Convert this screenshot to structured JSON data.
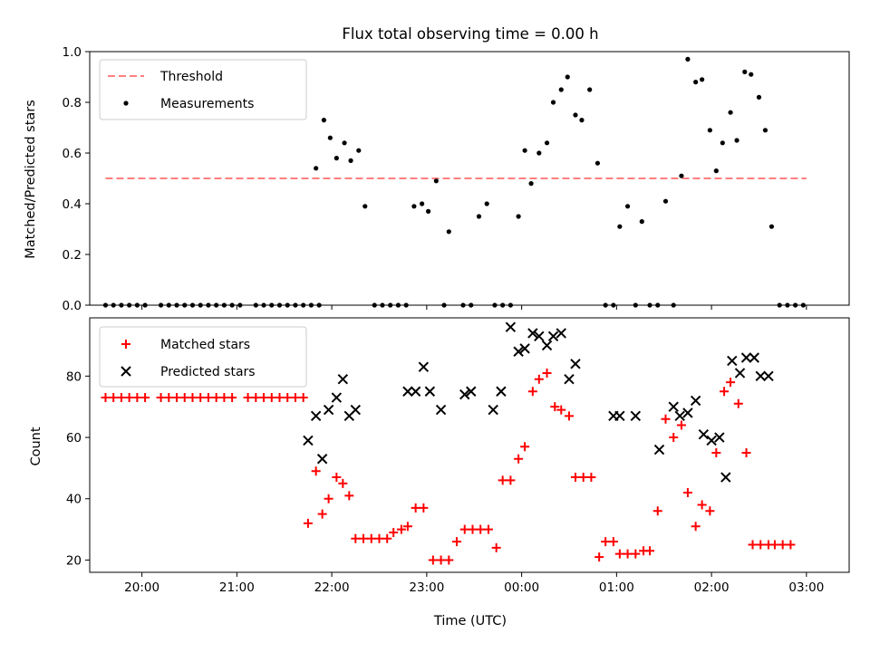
{
  "chart_data": [
    {
      "type": "scatter",
      "title": "Flux total observing time = 0.00 h",
      "xlabel": "",
      "ylabel": "Matched/Predicted stars",
      "xlim": [
        "19:27",
        "03:27"
      ],
      "ylim": [
        0,
        1.0
      ],
      "yticks": [
        "0.0",
        "0.2",
        "0.4",
        "0.6",
        "0.8",
        "1.0"
      ],
      "legend_position": "top-left",
      "threshold": {
        "name": "Threshold",
        "value": 0.5,
        "x_start": "19:37",
        "x_end": "03:00",
        "color": "#ff7f7f",
        "style": "dashed"
      },
      "series": [
        {
          "name": "Measurements",
          "color": "#000000",
          "marker": "dot",
          "points": [
            [
              "19:37",
              0.0
            ],
            [
              "19:42",
              0.0
            ],
            [
              "19:47",
              0.0
            ],
            [
              "19:52",
              0.0
            ],
            [
              "19:57",
              0.0
            ],
            [
              "20:02",
              0.0
            ],
            [
              "20:12",
              0.0
            ],
            [
              "20:17",
              0.0
            ],
            [
              "20:22",
              0.0
            ],
            [
              "20:27",
              0.0
            ],
            [
              "20:32",
              0.0
            ],
            [
              "20:37",
              0.0
            ],
            [
              "20:42",
              0.0
            ],
            [
              "20:47",
              0.0
            ],
            [
              "20:52",
              0.0
            ],
            [
              "20:57",
              0.0
            ],
            [
              "21:02",
              0.0
            ],
            [
              "21:12",
              0.0
            ],
            [
              "21:17",
              0.0
            ],
            [
              "21:22",
              0.0
            ],
            [
              "21:27",
              0.0
            ],
            [
              "21:32",
              0.0
            ],
            [
              "21:37",
              0.0
            ],
            [
              "21:42",
              0.0
            ],
            [
              "21:47",
              0.0
            ],
            [
              "21:52",
              0.0
            ],
            [
              "21:50",
              0.54
            ],
            [
              "21:55",
              0.73
            ],
            [
              "21:59",
              0.66
            ],
            [
              "22:03",
              0.58
            ],
            [
              "22:08",
              0.64
            ],
            [
              "22:12",
              0.57
            ],
            [
              "22:17",
              0.61
            ],
            [
              "22:21",
              0.39
            ],
            [
              "22:27",
              0.0
            ],
            [
              "22:32",
              0.0
            ],
            [
              "22:37",
              0.0
            ],
            [
              "22:42",
              0.0
            ],
            [
              "22:47",
              0.0
            ],
            [
              "22:52",
              0.39
            ],
            [
              "22:57",
              0.4
            ],
            [
              "23:01",
              0.37
            ],
            [
              "23:06",
              0.49
            ],
            [
              "23:11",
              0.0
            ],
            [
              "23:14",
              0.29
            ],
            [
              "23:23",
              0.0
            ],
            [
              "23:28",
              0.0
            ],
            [
              "23:33",
              0.35
            ],
            [
              "23:38",
              0.4
            ],
            [
              "23:43",
              0.0
            ],
            [
              "23:48",
              0.0
            ],
            [
              "23:53",
              0.0
            ],
            [
              "23:58",
              0.35
            ],
            [
              "00:02",
              0.61
            ],
            [
              "00:06",
              0.48
            ],
            [
              "00:11",
              0.6
            ],
            [
              "00:16",
              0.64
            ],
            [
              "00:20",
              0.8
            ],
            [
              "00:25",
              0.85
            ],
            [
              "00:29",
              0.9
            ],
            [
              "00:34",
              0.75
            ],
            [
              "00:38",
              0.73
            ],
            [
              "00:43",
              0.85
            ],
            [
              "00:48",
              0.56
            ],
            [
              "00:53",
              0.0
            ],
            [
              "00:58",
              0.0
            ],
            [
              "01:02",
              0.31
            ],
            [
              "01:07",
              0.39
            ],
            [
              "01:12",
              0.0
            ],
            [
              "01:16",
              0.33
            ],
            [
              "01:21",
              0.0
            ],
            [
              "01:26",
              0.0
            ],
            [
              "01:31",
              0.41
            ],
            [
              "01:36",
              0.0
            ],
            [
              "01:41",
              0.51
            ],
            [
              "01:45",
              0.97
            ],
            [
              "01:50",
              0.88
            ],
            [
              "01:54",
              0.89
            ],
            [
              "01:59",
              0.69
            ],
            [
              "02:03",
              0.53
            ],
            [
              "02:07",
              0.64
            ],
            [
              "02:12",
              0.76
            ],
            [
              "02:16",
              0.65
            ],
            [
              "02:21",
              0.92
            ],
            [
              "02:25",
              0.91
            ],
            [
              "02:30",
              0.82
            ],
            [
              "02:34",
              0.69
            ],
            [
              "02:38",
              0.31
            ],
            [
              "02:43",
              0.0
            ],
            [
              "02:48",
              0.0
            ],
            [
              "02:53",
              0.0
            ],
            [
              "02:58",
              0.0
            ]
          ]
        }
      ]
    },
    {
      "type": "scatter",
      "title": "",
      "xlabel": "Time (UTC)",
      "ylabel": "Count",
      "xlim": [
        "19:27",
        "03:27"
      ],
      "ylim": [
        16,
        99
      ],
      "yticks": [
        "20",
        "40",
        "60",
        "80"
      ],
      "xticks": [
        "20:00",
        "21:00",
        "22:00",
        "23:00",
        "00:00",
        "01:00",
        "02:00",
        "03:00"
      ],
      "legend_position": "top-left",
      "series": [
        {
          "name": "Matched stars",
          "color": "#ff0000",
          "marker": "plus",
          "points": [
            [
              "19:37",
              73
            ],
            [
              "19:42",
              73
            ],
            [
              "19:47",
              73
            ],
            [
              "19:52",
              73
            ],
            [
              "19:57",
              73
            ],
            [
              "20:02",
              73
            ],
            [
              "20:12",
              73
            ],
            [
              "20:17",
              73
            ],
            [
              "20:22",
              73
            ],
            [
              "20:27",
              73
            ],
            [
              "20:32",
              73
            ],
            [
              "20:37",
              73
            ],
            [
              "20:42",
              73
            ],
            [
              "20:47",
              73
            ],
            [
              "20:52",
              73
            ],
            [
              "20:57",
              73
            ],
            [
              "21:07",
              73
            ],
            [
              "21:12",
              73
            ],
            [
              "21:17",
              73
            ],
            [
              "21:22",
              73
            ],
            [
              "21:27",
              73
            ],
            [
              "21:32",
              73
            ],
            [
              "21:37",
              73
            ],
            [
              "21:42",
              73
            ],
            [
              "21:45",
              32
            ],
            [
              "21:50",
              49
            ],
            [
              "21:54",
              35
            ],
            [
              "21:58",
              40
            ],
            [
              "22:03",
              47
            ],
            [
              "22:07",
              45
            ],
            [
              "22:11",
              41
            ],
            [
              "22:15",
              27
            ],
            [
              "22:20",
              27
            ],
            [
              "22:25",
              27
            ],
            [
              "22:30",
              27
            ],
            [
              "22:35",
              27
            ],
            [
              "22:39",
              29
            ],
            [
              "22:44",
              30
            ],
            [
              "22:48",
              31
            ],
            [
              "22:53",
              37
            ],
            [
              "22:58",
              37
            ],
            [
              "23:04",
              20
            ],
            [
              "23:09",
              20
            ],
            [
              "23:14",
              20
            ],
            [
              "23:19",
              26
            ],
            [
              "23:24",
              30
            ],
            [
              "23:29",
              30
            ],
            [
              "23:34",
              30
            ],
            [
              "23:39",
              30
            ],
            [
              "23:44",
              24
            ],
            [
              "23:48",
              46
            ],
            [
              "23:53",
              46
            ],
            [
              "23:58",
              53
            ],
            [
              "00:02",
              57
            ],
            [
              "00:07",
              75
            ],
            [
              "00:11",
              79
            ],
            [
              "00:16",
              81
            ],
            [
              "00:21",
              70
            ],
            [
              "00:25",
              69
            ],
            [
              "00:30",
              67
            ],
            [
              "00:34",
              47
            ],
            [
              "00:39",
              47
            ],
            [
              "00:44",
              47
            ],
            [
              "00:49",
              21
            ],
            [
              "00:53",
              26
            ],
            [
              "00:58",
              26
            ],
            [
              "01:02",
              22
            ],
            [
              "01:07",
              22
            ],
            [
              "01:12",
              22
            ],
            [
              "01:17",
              23
            ],
            [
              "01:21",
              23
            ],
            [
              "01:26",
              36
            ],
            [
              "01:31",
              66
            ],
            [
              "01:36",
              60
            ],
            [
              "01:41",
              64
            ],
            [
              "01:45",
              42
            ],
            [
              "01:50",
              31
            ],
            [
              "01:54",
              38
            ],
            [
              "01:59",
              36
            ],
            [
              "02:03",
              55
            ],
            [
              "02:08",
              75
            ],
            [
              "02:12",
              78
            ],
            [
              "02:17",
              71
            ],
            [
              "02:22",
              55
            ],
            [
              "02:26",
              25
            ],
            [
              "02:31",
              25
            ],
            [
              "02:36",
              25
            ],
            [
              "02:40",
              25
            ],
            [
              "02:45",
              25
            ],
            [
              "02:50",
              25
            ]
          ]
        },
        {
          "name": "Predicted stars",
          "color": "#000000",
          "marker": "x",
          "points": [
            [
              "21:45",
              59
            ],
            [
              "21:50",
              67
            ],
            [
              "21:54",
              53
            ],
            [
              "21:58",
              69
            ],
            [
              "22:03",
              73
            ],
            [
              "22:07",
              79
            ],
            [
              "22:11",
              67
            ],
            [
              "22:15",
              69
            ],
            [
              "22:48",
              75
            ],
            [
              "22:53",
              75
            ],
            [
              "22:58",
              83
            ],
            [
              "23:02",
              75
            ],
            [
              "23:09",
              69
            ],
            [
              "23:24",
              74
            ],
            [
              "23:28",
              75
            ],
            [
              "23:42",
              69
            ],
            [
              "23:47",
              75
            ],
            [
              "23:53",
              96
            ],
            [
              "23:58",
              88
            ],
            [
              "00:02",
              89
            ],
            [
              "00:07",
              94
            ],
            [
              "00:11",
              93
            ],
            [
              "00:16",
              90
            ],
            [
              "00:20",
              93
            ],
            [
              "00:25",
              94
            ],
            [
              "00:30",
              79
            ],
            [
              "00:34",
              84
            ],
            [
              "00:58",
              67
            ],
            [
              "01:02",
              67
            ],
            [
              "01:12",
              67
            ],
            [
              "01:27",
              56
            ],
            [
              "01:36",
              70
            ],
            [
              "01:40",
              67
            ],
            [
              "01:45",
              68
            ],
            [
              "01:50",
              72
            ],
            [
              "01:55",
              61
            ],
            [
              "02:00",
              59
            ],
            [
              "02:05",
              60
            ],
            [
              "02:09",
              47
            ],
            [
              "02:13",
              85
            ],
            [
              "02:18",
              81
            ],
            [
              "02:22",
              86
            ],
            [
              "02:27",
              86
            ],
            [
              "02:31",
              80
            ],
            [
              "02:36",
              80
            ]
          ]
        }
      ]
    }
  ]
}
